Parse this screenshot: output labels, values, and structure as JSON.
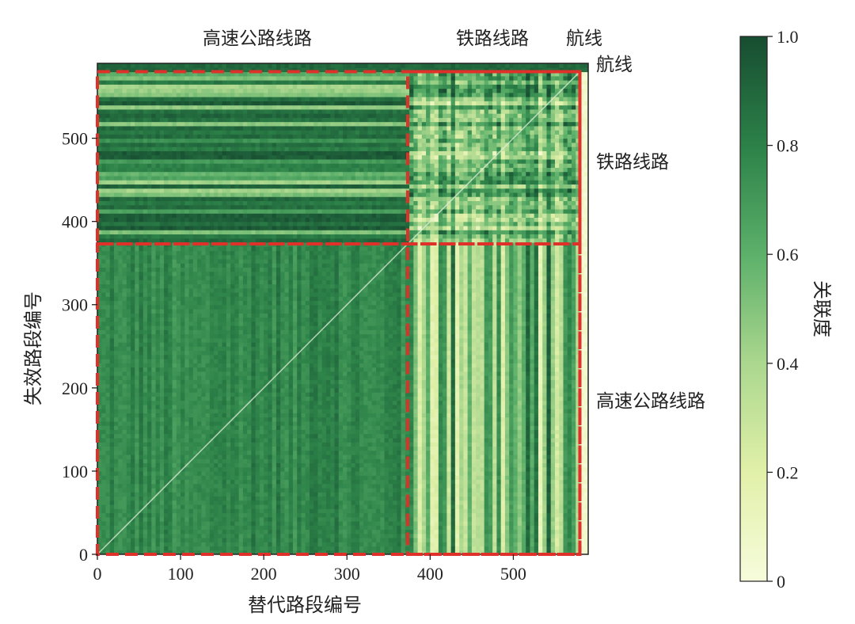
{
  "chart_data": {
    "type": "heatmap",
    "xlabel": "替代路段编号",
    "ylabel": "失效路段编号",
    "xlim": [
      0,
      590
    ],
    "ylim": [
      0,
      590
    ],
    "xticks": [
      0,
      100,
      200,
      300,
      400,
      500
    ],
    "yticks": [
      0,
      100,
      200,
      300,
      400,
      500
    ],
    "groups": [
      {
        "name": "高速公路线路",
        "start": 0,
        "end": 373
      },
      {
        "name": "铁路线路",
        "start": 373,
        "end": 580
      },
      {
        "name": "航线",
        "start": 580,
        "end": 590
      }
    ],
    "top_labels": [
      "高速公路线路",
      "铁路线路",
      "航线"
    ],
    "right_labels": [
      "航线",
      "铁路线路",
      "高速公路线路"
    ],
    "block_mean_values": {
      "highway_to_highway": 0.85,
      "highway_to_railway": 0.45,
      "highway_to_air": 0.05,
      "railway_to_highway": 0.8,
      "railway_to_railway": 0.6,
      "railway_to_air": 0.05,
      "air_to_all": 0.9
    },
    "diagonal_value": 0.2,
    "colorbar": {
      "label": "关联度",
      "range": [
        0,
        1.0
      ],
      "ticks": [
        0,
        0.2,
        0.4,
        0.6,
        0.8,
        1.0
      ],
      "tick_labels": [
        "0",
        "0.2",
        "0.4",
        "0.6",
        "0.8",
        "1.0"
      ],
      "colormap": "Greens"
    },
    "highlight_color": "#e0302a"
  }
}
